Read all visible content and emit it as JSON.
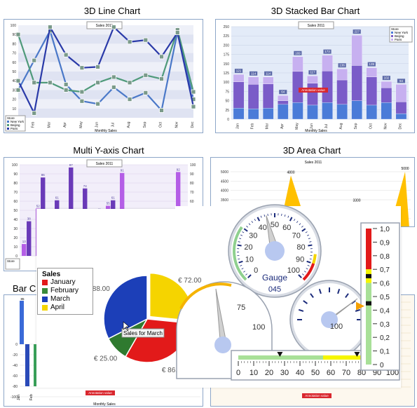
{
  "titles": {
    "line3d": "3D Line Chart",
    "stacked": "3D Stacked Bar Chart",
    "multiy": "Multi Y-axis Chart",
    "area": "3D Area Chart",
    "bar": "Bar C"
  },
  "common": {
    "sales_label": "Sales 2011",
    "xlabel": "Monthly Sales",
    "ylabel": "x 1000 USD",
    "annotation": "Annotation value",
    "months": [
      "Jan",
      "Feb",
      "Mar",
      "Apr",
      "May",
      "Jun",
      "Jul",
      "Aug",
      "Sep",
      "Oct",
      "Nov",
      "Dec"
    ]
  },
  "colors": {
    "ny": "#4a78c8",
    "beijing": "#4f9a7a",
    "paris": "#2a3aa8",
    "purple": "#9a4ad8",
    "gold": "#ffc000",
    "green": "#3aa25a",
    "red": "#e21a1a"
  },
  "chart_data": [
    {
      "type": "line",
      "title": "3D Line Chart",
      "subtitle": "Sales 2011",
      "xlabel": "Monthly Sales",
      "ylabel": "x 1000 USD",
      "categories": [
        "Jan",
        "Feb",
        "Mar",
        "Apr",
        "May",
        "Jun",
        "Jul",
        "Aug",
        "Sep",
        "Oct",
        "Nov",
        "Dec"
      ],
      "ylim": [
        0,
        100
      ],
      "series": [
        {
          "name": "New York",
          "values": [
            30,
            62,
            94,
            36,
            18,
            15,
            33,
            20,
            27,
            8,
            93,
            20
          ]
        },
        {
          "name": "Beijing",
          "values": [
            90,
            38,
            38,
            30,
            28,
            38,
            44,
            38,
            46,
            42,
            95,
            28
          ]
        },
        {
          "name": "Paris",
          "values": [
            40,
            5,
            98,
            68,
            54,
            55,
            98,
            82,
            84,
            66,
            92,
            12
          ]
        }
      ],
      "legend": "bottom-left"
    },
    {
      "type": "bar",
      "title": "3D Stacked Bar Chart",
      "subtitle": "Sales 2011",
      "xlabel": "Monthly Sales",
      "ylabel": "x 1000 USD",
      "categories": [
        "Jan",
        "Feb",
        "Mar",
        "Apr",
        "May",
        "Jun",
        "Jul",
        "Aug",
        "Sep",
        "Oct",
        "Nov",
        "Dec"
      ],
      "ylim": [
        0,
        250
      ],
      "totals": [
        121,
        114,
        114,
        64,
        169,
        117,
        173,
        136,
        227,
        139,
        102,
        94
      ],
      "series": [
        {
          "name": "New York",
          "values": [
            30,
            28,
            30,
            40,
            45,
            38,
            45,
            40,
            50,
            38,
            45,
            15
          ]
        },
        {
          "name": "Beijing",
          "values": [
            71,
            66,
            65,
            10,
            84,
            59,
            85,
            66,
            95,
            76,
            40,
            32
          ]
        },
        {
          "name": "Paris",
          "values": [
            20,
            20,
            19,
            14,
            40,
            20,
            43,
            30,
            82,
            25,
            17,
            47
          ]
        }
      ],
      "annotation": "Annotation value",
      "legend": "top-right"
    },
    {
      "type": "bar",
      "title": "Multi Y-axis Chart",
      "subtitle": "Sales 2011",
      "ylabel": "x 1000 USD",
      "categories": [
        "Jan",
        "Feb",
        "Mar",
        "Apr",
        "May",
        "Jun",
        "Jul",
        "Aug",
        "Sep",
        "Oct",
        "Nov",
        "Dec"
      ],
      "ylim": [
        0,
        100
      ],
      "series": [
        {
          "name": "",
          "values": [
            13,
            52,
            28,
            24,
            8,
            18,
            55,
            91,
            25,
            16,
            23,
            92
          ]
        },
        {
          "name": "",
          "values": [
            38,
            86,
            61,
            97,
            74,
            48,
            61,
            33,
            38,
            28,
            5,
            9
          ]
        }
      ]
    },
    {
      "type": "area",
      "title": "3D Area Chart",
      "subtitle": "Sales 2011",
      "ylim": [
        2000,
        5000
      ],
      "visible_labels": [
        "4800",
        "3300",
        "5000"
      ]
    },
    {
      "type": "pie",
      "legend_title": "Sales",
      "slices": [
        {
          "label": "January",
          "value": 86.0,
          "text": "€ 86.00"
        },
        {
          "label": "February",
          "value": 25.0,
          "text": "€ 25.00"
        },
        {
          "label": "March",
          "value": 88.0,
          "text": "€ 88.00"
        },
        {
          "label": "April",
          "value": 72.0,
          "text": "€ 72.00"
        }
      ],
      "tooltip": "Sales for March",
      "legend": "top-left"
    },
    {
      "type": "gauge",
      "label": "Gauge",
      "value": 45,
      "readout": "045",
      "range": [
        0,
        100
      ],
      "ticks": [
        "0",
        "10",
        "20",
        "30",
        "40",
        "50",
        "60",
        "70",
        "80",
        "90",
        "100"
      ]
    },
    {
      "type": "gauge",
      "range": [
        0,
        100
      ],
      "ticks": [
        "75",
        "100"
      ]
    },
    {
      "type": "gauge",
      "range": [
        0,
        100
      ],
      "ticks": [
        "100"
      ]
    },
    {
      "type": "gauge",
      "orientation": "horizontal",
      "range": [
        0,
        100
      ],
      "ticks": [
        "0",
        "10",
        "20",
        "30",
        "40",
        "50",
        "60",
        "70",
        "80",
        "90",
        "100"
      ],
      "markers": [
        27,
        77
      ]
    },
    {
      "type": "gauge",
      "orientation": "vertical",
      "range": [
        0,
        1
      ],
      "ticks": [
        "1,0",
        "0,9",
        "0,8",
        "0,7",
        "0,6",
        "0,5",
        "0,4",
        "0,3",
        "0,2",
        "0,1",
        "0"
      ],
      "value": 0.43
    }
  ]
}
